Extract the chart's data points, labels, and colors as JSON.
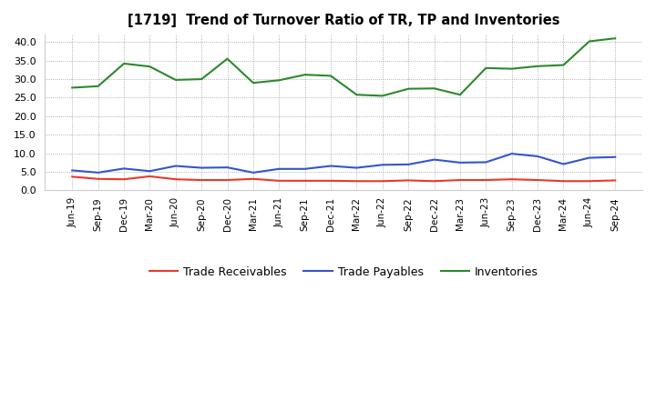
{
  "title": "[1719]  Trend of Turnover Ratio of TR, TP and Inventories",
  "x_labels": [
    "Jun-19",
    "Sep-19",
    "Dec-19",
    "Mar-20",
    "Jun-20",
    "Sep-20",
    "Dec-20",
    "Mar-21",
    "Jun-21",
    "Sep-21",
    "Dec-21",
    "Mar-22",
    "Jun-22",
    "Sep-22",
    "Dec-22",
    "Mar-23",
    "Jun-23",
    "Sep-23",
    "Dec-23",
    "Mar-24",
    "Jun-24",
    "Sep-24"
  ],
  "trade_receivables": [
    3.7,
    3.1,
    3.0,
    3.8,
    3.0,
    2.8,
    2.8,
    3.1,
    2.6,
    2.6,
    2.6,
    2.5,
    2.5,
    2.7,
    2.5,
    2.8,
    2.8,
    3.0,
    2.8,
    2.5,
    2.5,
    2.7
  ],
  "trade_payables": [
    5.4,
    4.8,
    5.9,
    5.2,
    6.6,
    6.1,
    6.2,
    4.8,
    5.8,
    5.8,
    6.6,
    6.1,
    6.9,
    7.0,
    8.3,
    7.5,
    7.6,
    9.9,
    9.2,
    7.1,
    8.8,
    9.0
  ],
  "inventories": [
    27.7,
    28.1,
    34.2,
    33.4,
    29.8,
    30.0,
    35.5,
    29.0,
    29.7,
    31.2,
    30.9,
    25.8,
    25.5,
    27.4,
    27.5,
    25.8,
    33.0,
    32.8,
    33.5,
    33.8,
    40.2,
    41.0
  ],
  "color_tr": "#e8392a",
  "color_tp": "#3355cc",
  "color_inv": "#2a8a2a",
  "ylim": [
    0.0,
    42.0
  ],
  "yticks": [
    0.0,
    5.0,
    10.0,
    15.0,
    20.0,
    25.0,
    30.0,
    35.0,
    40.0
  ],
  "legend_labels": [
    "Trade Receivables",
    "Trade Payables",
    "Inventories"
  ],
  "bg_color": "#ffffff",
  "plot_bg_color": "#ffffff"
}
